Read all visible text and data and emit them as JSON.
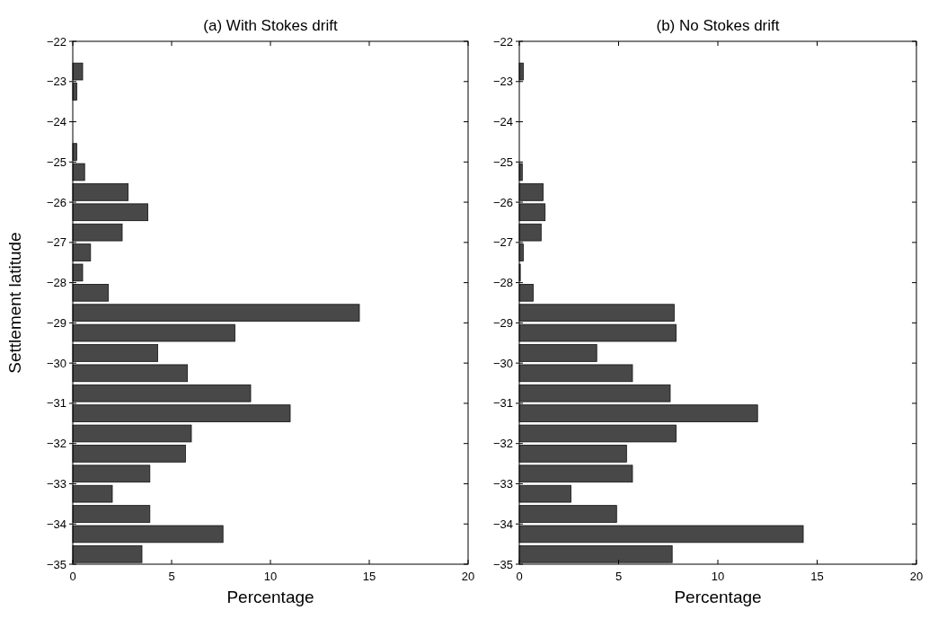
{
  "chart_data": [
    {
      "type": "histogram",
      "orientation": "horizontal",
      "title": "(a) With Stokes drift",
      "xlabel": "Percentage",
      "ylabel": "Settlement latitude",
      "color": "#484848",
      "bins": [
        -35,
        -34.5,
        -34,
        -33.5,
        -33,
        -32.5,
        -32,
        -31.5,
        -31,
        -30.5,
        -30,
        -29.5,
        -29,
        -28.5,
        -28,
        -27.5,
        -27,
        -26.5,
        -26,
        -25.5,
        -25,
        -24.5,
        -24,
        -23.5,
        -23,
        -22.5,
        -22
      ],
      "values": [
        3.5,
        7.6,
        3.9,
        2.0,
        3.9,
        5.7,
        6.0,
        11.0,
        9.0,
        5.8,
        4.3,
        8.2,
        14.5,
        1.8,
        0.5,
        0.9,
        2.5,
        3.8,
        2.8,
        0.6,
        0.2,
        0,
        0,
        0.2,
        0.5,
        0
      ],
      "xlim": [
        0,
        20
      ],
      "xticks": [
        0,
        5,
        10,
        15,
        20
      ],
      "ylim": [
        -35,
        -22
      ],
      "yticks": [
        -35,
        -34,
        -33,
        -32,
        -31,
        -30,
        -29,
        -28,
        -27,
        -26,
        -25,
        -24,
        -23,
        -22
      ],
      "grid": false
    },
    {
      "type": "histogram",
      "orientation": "horizontal",
      "title": "(b) No Stokes drift",
      "xlabel": "Percentage",
      "color": "#484848",
      "bins": [
        -35,
        -34.5,
        -34,
        -33.5,
        -33,
        -32.5,
        -32,
        -31.5,
        -31,
        -30.5,
        -30,
        -29.5,
        -29,
        -28.5,
        -28,
        -27.5,
        -27,
        -26.5,
        -26,
        -25.5,
        -25,
        -24.5,
        -24,
        -23.5,
        -23,
        -22.5,
        -22
      ],
      "values": [
        7.7,
        14.3,
        4.9,
        2.6,
        5.7,
        5.4,
        7.9,
        12.0,
        7.6,
        5.7,
        3.9,
        7.9,
        7.8,
        0.7,
        0.05,
        0.2,
        1.1,
        1.3,
        1.2,
        0.15,
        0,
        0,
        0,
        0,
        0.2,
        0
      ],
      "xlim": [
        0,
        20
      ],
      "xticks": [
        0,
        5,
        10,
        15,
        20
      ],
      "ylim": [
        -35,
        -22
      ],
      "yticks": [
        -35,
        -34,
        -33,
        -32,
        -31,
        -30,
        -29,
        -28,
        -27,
        -26,
        -25,
        -24,
        -23,
        -22
      ],
      "grid": false
    }
  ]
}
